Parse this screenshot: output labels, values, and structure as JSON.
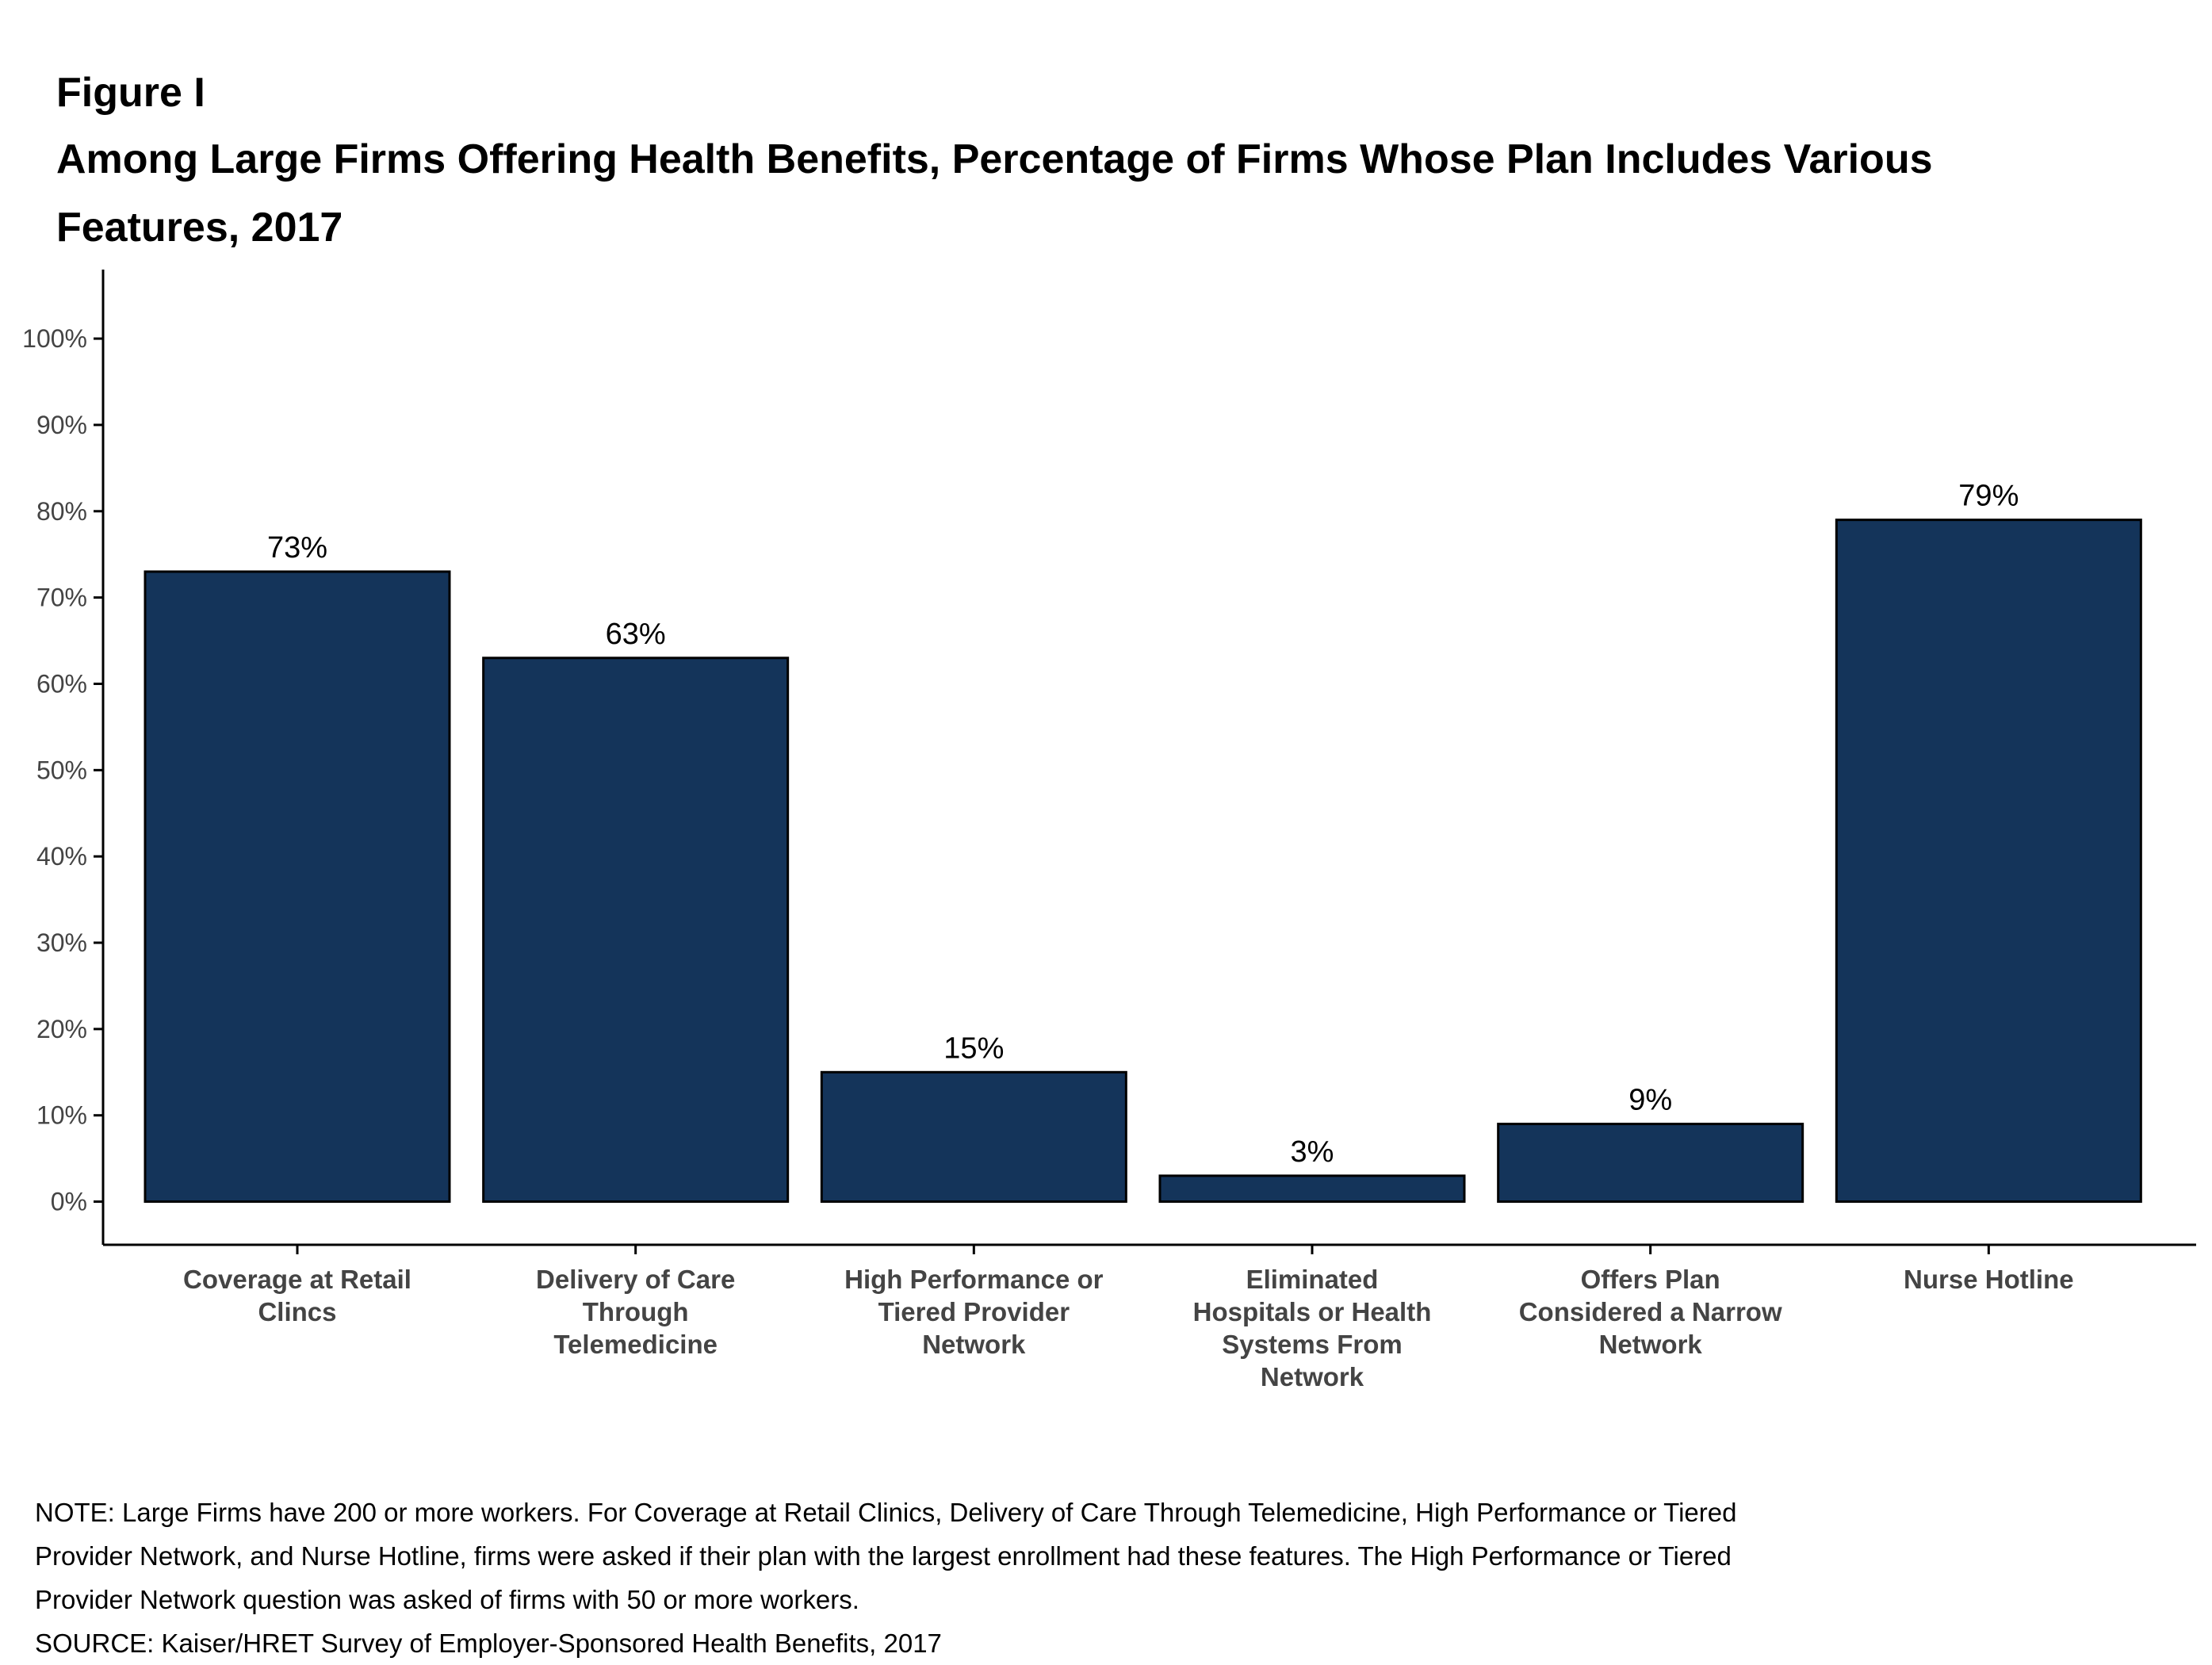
{
  "figure_label": "Figure I",
  "chart_data": {
    "type": "bar",
    "title": "Among Large Firms Offering Health Benefits, Percentage of Firms Whose Plan Includes Various Features, 2017",
    "categories": [
      [
        "Coverage at Retail",
        "Clincs"
      ],
      [
        "Delivery of Care",
        "Through",
        "Telemedicine"
      ],
      [
        "High Performance or",
        "Tiered Provider",
        "Network"
      ],
      [
        "Eliminated",
        "Hospitals or Health",
        "Systems From",
        "Network"
      ],
      [
        "Offers Plan",
        "Considered a Narrow",
        "Network"
      ],
      [
        "Nurse Hotline"
      ]
    ],
    "values": [
      73,
      63,
      15,
      3,
      9,
      79
    ],
    "data_labels": [
      "73%",
      "63%",
      "15%",
      "3%",
      "9%",
      "79%"
    ],
    "y_ticks": [
      0,
      10,
      20,
      30,
      40,
      50,
      60,
      70,
      80,
      90,
      100
    ],
    "y_tick_labels": [
      "0%",
      "10%",
      "20%",
      "30%",
      "40%",
      "50%",
      "60%",
      "70%",
      "80%",
      "90%",
      "100%"
    ],
    "ylim": [
      -5,
      108
    ],
    "xlabel": "",
    "ylabel": "",
    "grid": false,
    "legend": "none",
    "colors": {
      "bar_fill": "#14345a",
      "bar_stroke": "#000000",
      "axis": "#000000",
      "tick_label": "#444444",
      "category_label": "#444444",
      "data_label": "#000000"
    }
  },
  "notes": [
    "NOTE: Large Firms have 200 or more workers.  For Coverage at Retail Clinics, Delivery of Care Through Telemedicine, High Performance or Tiered",
    "Provider Network, and Nurse Hotline, firms were asked if their plan with the largest enrollment had these features. The High Performance or Tiered",
    "Provider Network question was asked of firms with 50 or more workers.",
    "SOURCE: Kaiser/HRET Survey of Employer-Sponsored Health Benefits, 2017"
  ]
}
